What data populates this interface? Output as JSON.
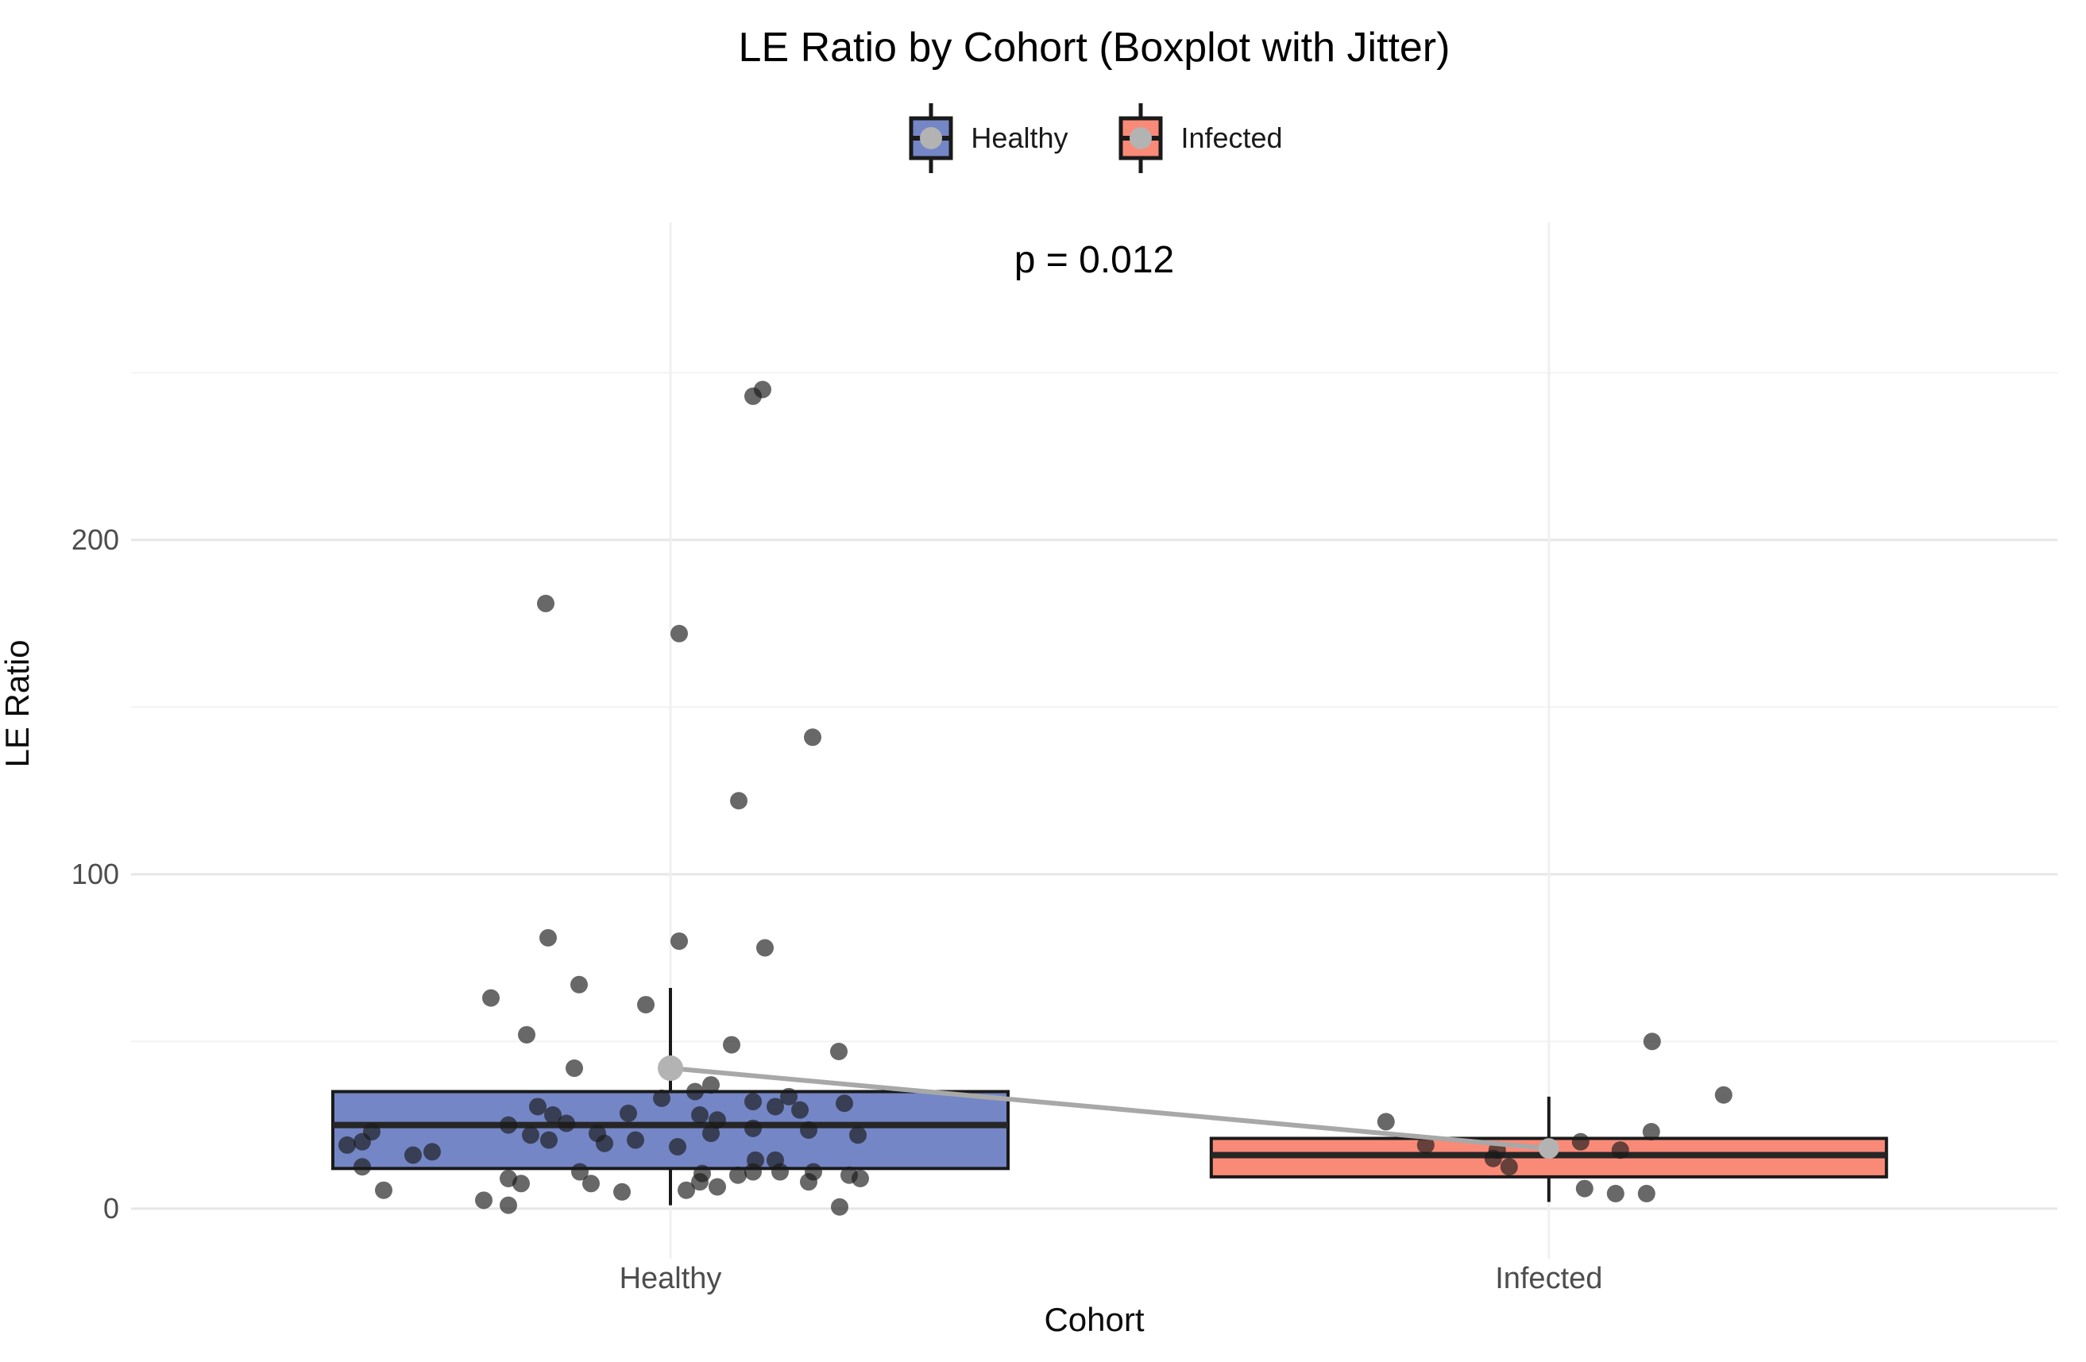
{
  "figure": {
    "title": "LE Ratio by Cohort (Boxplot with Jitter)",
    "annotation": "p = 0.012"
  },
  "legend": {
    "items": [
      {
        "label": "Healthy",
        "color": "#7486C6"
      },
      {
        "label": "Infected",
        "color": "#FA8A78"
      }
    ]
  },
  "axes": {
    "x_title": "Cohort",
    "y_title": "LE Ratio"
  },
  "chart_data": {
    "type": "boxplot",
    "subtype": "boxplot-with-jitter-and-mean-line",
    "title": "LE Ratio by Cohort (Boxplot with Jitter)",
    "annotation": "p = 0.012",
    "xlabel": "Cohort",
    "ylabel": "LE Ratio",
    "categories": [
      "Healthy",
      "Infected"
    ],
    "y_ticks": [
      0,
      100,
      200
    ],
    "y_tick_labels": [
      "0",
      "100",
      "200"
    ],
    "y_minor_gridlines": [
      50,
      150,
      250
    ],
    "ylim": [
      -15,
      295
    ],
    "grid": "horizontal major+minor, faint vertical line at each category",
    "legend_position": "top-center",
    "colors": {
      "healthy_fill": "#7486C6",
      "infected_fill": "#FA8A78",
      "box_stroke": "#1a1a1a",
      "median_stroke": "#262626",
      "point_fill": "#1a1a1a",
      "mean_point": "#b3b3b3",
      "mean_line": "#a8a8a8",
      "major_grid": "#e6e6e6",
      "minor_grid": "#f2f2f2",
      "tick_label": "#4d4d4d"
    },
    "groups": [
      {
        "name": "Healthy",
        "fill": "#7486C6",
        "box": {
          "whisker_low": 1,
          "q1": 12,
          "median": 25,
          "q3": 35,
          "whisker_high": 66
        },
        "mean": 42,
        "points": [
          [
            245,
            116
          ],
          [
            243,
            104
          ],
          [
            181,
            -157
          ],
          [
            172,
            11
          ],
          [
            141,
            179
          ],
          [
            122,
            86
          ],
          [
            81,
            -154
          ],
          [
            80,
            11
          ],
          [
            78,
            119
          ],
          [
            67,
            -115
          ],
          [
            63,
            -226
          ],
          [
            61,
            -31
          ],
          [
            52,
            -181
          ],
          [
            49,
            77
          ],
          [
            47,
            212
          ],
          [
            42,
            -121
          ],
          [
            37,
            51
          ],
          [
            35,
            31
          ],
          [
            33.5,
            149
          ],
          [
            33,
            -11
          ],
          [
            32,
            104
          ],
          [
            31.5,
            219
          ],
          [
            30.5,
            -167
          ],
          [
            30.5,
            132
          ],
          [
            29.5,
            163
          ],
          [
            28.5,
            -53
          ],
          [
            28,
            -148
          ],
          [
            28,
            37
          ],
          [
            26.5,
            59
          ],
          [
            25.5,
            -131
          ],
          [
            25,
            -204
          ],
          [
            24,
            104
          ],
          [
            23.5,
            174
          ],
          [
            23,
            -376
          ],
          [
            22.5,
            -92
          ],
          [
            22.5,
            51
          ],
          [
            22,
            -176
          ],
          [
            22,
            236
          ],
          [
            20.5,
            -153
          ],
          [
            20.5,
            -44
          ],
          [
            20,
            -388
          ],
          [
            19.5,
            -83
          ],
          [
            19,
            -407
          ],
          [
            18.5,
            9
          ],
          [
            17,
            -300
          ],
          [
            16,
            -324
          ],
          [
            14.5,
            107
          ],
          [
            14.5,
            132
          ],
          [
            12.5,
            -388
          ],
          [
            11,
            -114
          ],
          [
            11,
            180
          ],
          [
            11,
            104
          ],
          [
            11,
            138
          ],
          [
            10.5,
            40
          ],
          [
            10,
            85
          ],
          [
            10,
            225
          ],
          [
            9,
            -204
          ],
          [
            9,
            239
          ],
          [
            8,
            37
          ],
          [
            8,
            174
          ],
          [
            7.5,
            -100
          ],
          [
            7.5,
            -188
          ],
          [
            6.5,
            59
          ],
          [
            5.5,
            20
          ],
          [
            5.5,
            -361
          ],
          [
            5,
            -61
          ],
          [
            2.5,
            -235
          ],
          [
            1,
            -204
          ],
          [
            0.5,
            213
          ]
        ]
      },
      {
        "name": "Infected",
        "fill": "#FA8A78",
        "box": {
          "whisker_low": 2,
          "q1": 9.5,
          "median": 16,
          "q3": 21,
          "whisker_high": 33.5
        },
        "mean": 18,
        "points": [
          [
            50,
            130
          ],
          [
            34,
            220
          ],
          [
            26,
            -205
          ],
          [
            23,
            129
          ],
          [
            20,
            40
          ],
          [
            19,
            -155
          ],
          [
            17.5,
            -65
          ],
          [
            17.5,
            90
          ],
          [
            15,
            -70
          ],
          [
            12.5,
            -50
          ],
          [
            6,
            45
          ],
          [
            4.5,
            84
          ],
          [
            4.5,
            123
          ]
        ]
      }
    ],
    "mean_line": {
      "connects": [
        "Healthy",
        "Infected"
      ],
      "values": [
        42,
        18
      ]
    },
    "point_style": {
      "radius": 11,
      "opacity": 0.66
    }
  }
}
